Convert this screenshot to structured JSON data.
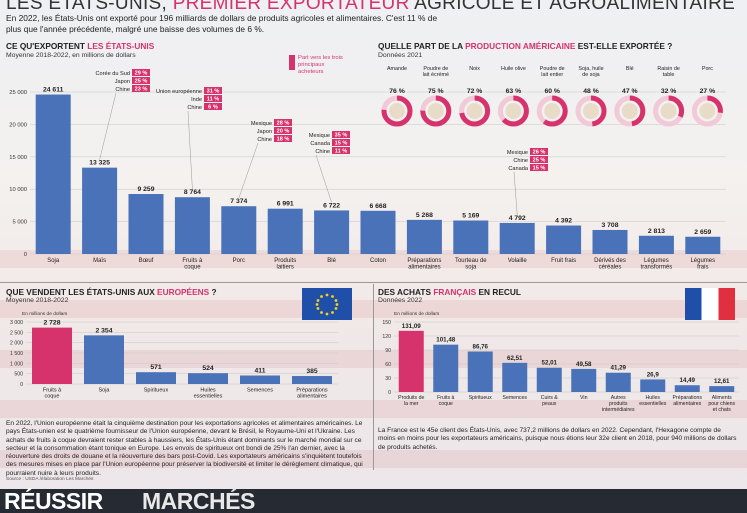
{
  "header": {
    "title_part1": "LES ÉTATS-UNIS, ",
    "title_part2": "PREMIER EXPORTATEUR",
    "title_part3": " AGRICOLE ET AGROALIMENTAIRE",
    "intro": "En 2022, les États-Unis ont exporté pour 196 milliards de dollars de produits agricoles et alimentaires. C'est 11 % de plus que l'année précédente, malgré une baisse des volumes de 6 %."
  },
  "section_exports": {
    "title_a": "CE QU'EXPORTENT ",
    "title_b": "LES ÉTATS-UNIS",
    "subtitle": "Moyenne 2018-2022, en millions de dollars",
    "legend": "Part vers les trois principaux acheteurs"
  },
  "section_share": {
    "title_a": "QUELLE PART DE LA ",
    "title_b": "PRODUCTION AMÉRICAINE",
    "title_c": " EST-ELLE EXPORTÉE ?",
    "subtitle": "Données 2021"
  },
  "section_europe": {
    "title_a": "QUE VENDENT LES ÉTATS-UNIS AUX ",
    "title_b": "EUROPÉENS",
    "title_c": " ?",
    "subtitle": "Moyenne 2018-2022",
    "unit": "En millions de dollars",
    "text": "En 2022, l'Union européenne était la cinquième destination pour les exportations agricoles et alimentaires américaines. Le pays États-unien est le quatrième fournisseur de l'Union européenne, devant le Brésil, le Royaume-Uni et l'Ukraine. Les achats de fruits à coque devraient rester stables à haussiers, les États-Unis étant dominants sur le marché mondial sur ce secteur et la consommation étant tonique en Europe. Les envois de spiritueux ont bondi de 25% l'an dernier, avec la réouverture des droits de douane et la réouverture des bars post-Covid. Les exportateurs américains s'inquiètent toutefois des mesures mises en place par l'Union européenne pour préserver la biodiversité et limiter le dérèglement climatique, qui pourraient nuire à leurs produits."
  },
  "section_france": {
    "title_a": "DES ACHATS ",
    "title_b": "FRANÇAIS",
    "title_c": " EN RECUL",
    "subtitle": "Données 2022",
    "unit": "En millions de dollars",
    "text": "La France est le 45e client des États-Unis, avec 737,2 millions de dollars en 2022. Cependant, l'Hexagone compte de moins en moins pour les exportateurs américains, puisque nous étions leur 32e client en 2018, pour 940 millions de dollars de produits achetés."
  },
  "footer": {
    "source": "Source : USDA /élaboration Les Marchés",
    "brand1": "RÉUSSIR",
    "brand2": "MARCHÉS"
  },
  "colors": {
    "accent": "#d6336c",
    "bar": "#4a72b8",
    "dark": "#262a33"
  },
  "chart_data": [
    {
      "id": "exports",
      "type": "bar",
      "title": "CE QU'EXPORTENT LES ÉTATS-UNIS",
      "subtitle": "Moyenne 2018-2022, en millions de dollars",
      "ylim": [
        0,
        25000
      ],
      "yticks": [
        "0",
        "5 000",
        "10 000",
        "15 000",
        "20 000",
        "25 000"
      ],
      "categories": [
        "Soja",
        "Maïs",
        "Bœuf",
        "Fruits à coque",
        "Porc",
        "Produits laitiers",
        "Blé",
        "Coton",
        "Préparations alimentaires",
        "Tourteau de soja",
        "Volaille",
        "Fruit frais",
        "Dérivés des céréales",
        "Légumes transformés",
        "Légumes frais"
      ],
      "values": [
        24611,
        13325,
        9259,
        8764,
        7374,
        6991,
        6722,
        6668,
        5268,
        5169,
        4792,
        4392,
        3708,
        2813,
        2659
      ],
      "labels": [
        "24 611",
        "13 325",
        "9 259",
        "8 764",
        "7 374",
        "6 991",
        "6 722",
        "6 668",
        "5 268",
        "5 169",
        "4 792",
        "4 392",
        "3 708",
        "2 813",
        "2 659"
      ],
      "top_buyers": [
        {
          "category": "Maïs",
          "buyers": [
            {
              "country": "Corée du Sud",
              "share": "29 %"
            },
            {
              "country": "Japon",
              "share": "25 %"
            },
            {
              "country": "Chine",
              "share": "23 %"
            }
          ]
        },
        {
          "category": "Fruits à coque",
          "buyers": [
            {
              "country": "Union européenne",
              "share": "31 %"
            },
            {
              "country": "Inde",
              "share": "11 %"
            },
            {
              "country": "Chine",
              "share": "6 %"
            }
          ]
        },
        {
          "category": "Porc",
          "buyers": [
            {
              "country": "Mexique",
              "share": "28 %"
            },
            {
              "country": "Japon",
              "share": "20 %"
            },
            {
              "country": "Chine",
              "share": "18 %"
            }
          ]
        },
        {
          "category": "Blé",
          "buyers": [
            {
              "country": "Mexique",
              "share": "35 %"
            },
            {
              "country": "Canada",
              "share": "15 %"
            },
            {
              "country": "Chine",
              "share": "11 %"
            }
          ]
        },
        {
          "category": "Volaille",
          "buyers": [
            {
              "country": "Mexique",
              "share": "26 %"
            },
            {
              "country": "Chine",
              "share": "25 %"
            },
            {
              "country": "Canada",
              "share": "15 %"
            }
          ]
        }
      ]
    },
    {
      "id": "share",
      "type": "pie",
      "title": "QUELLE PART DE LA PRODUCTION AMÉRICAINE EST-ELLE EXPORTÉE ?",
      "subtitle": "Données 2021",
      "categories": [
        "Amande",
        "Poudre de lait écrémé",
        "Noix",
        "Huile olive",
        "Poudre de lait entier",
        "Soja, huile de soja",
        "Blé",
        "Raisin de table",
        "Porc"
      ],
      "values": [
        76,
        75,
        72,
        63,
        60,
        48,
        47,
        32,
        27
      ],
      "labels": [
        "76 %",
        "75 %",
        "72 %",
        "63 %",
        "60 %",
        "48 %",
        "47 %",
        "32 %",
        "27 %"
      ]
    },
    {
      "id": "europe",
      "type": "bar",
      "title": "QUE VENDENT LES ÉTATS-UNIS AUX EUROPÉENS ?",
      "subtitle": "Moyenne 2018-2022",
      "ylim": [
        0,
        3000
      ],
      "yticks": [
        "0",
        "500",
        "1 000",
        "1 500",
        "2 000",
        "2 500",
        "3 000"
      ],
      "categories": [
        "Fruits à coque",
        "Soja",
        "Spiritueux",
        "Huiles essentielles",
        "Semences",
        "Préparations alimentaires"
      ],
      "values": [
        2728,
        2354,
        571,
        524,
        411,
        385
      ],
      "labels": [
        "2 728",
        "2 354",
        "571",
        "524",
        "411",
        "385"
      ],
      "highlight": [
        0
      ]
    },
    {
      "id": "france",
      "type": "bar",
      "title": "DES ACHATS FRANÇAIS EN RECUL",
      "subtitle": "Données 2022",
      "ylim": [
        0,
        150
      ],
      "yticks": [
        "0",
        "30",
        "60",
        "90",
        "120",
        "150"
      ],
      "categories": [
        "Produits de la mer",
        "Fruits à coque",
        "Spiritueux",
        "Semences",
        "Cuirs & peaux",
        "Vin",
        "Autres produits intermédiaires",
        "Huiles essentielles",
        "Préparations alimentaires",
        "Aliments pour chiens et chats"
      ],
      "values": [
        131.09,
        101.48,
        86.76,
        62.51,
        52.01,
        49.58,
        41.29,
        26.9,
        14.49,
        12.61
      ],
      "labels": [
        "131,09",
        "101,48",
        "86,76",
        "62,51",
        "52,01",
        "49,58",
        "41,29",
        "26,9",
        "14,49",
        "12,61"
      ],
      "highlight": [
        0
      ]
    }
  ]
}
